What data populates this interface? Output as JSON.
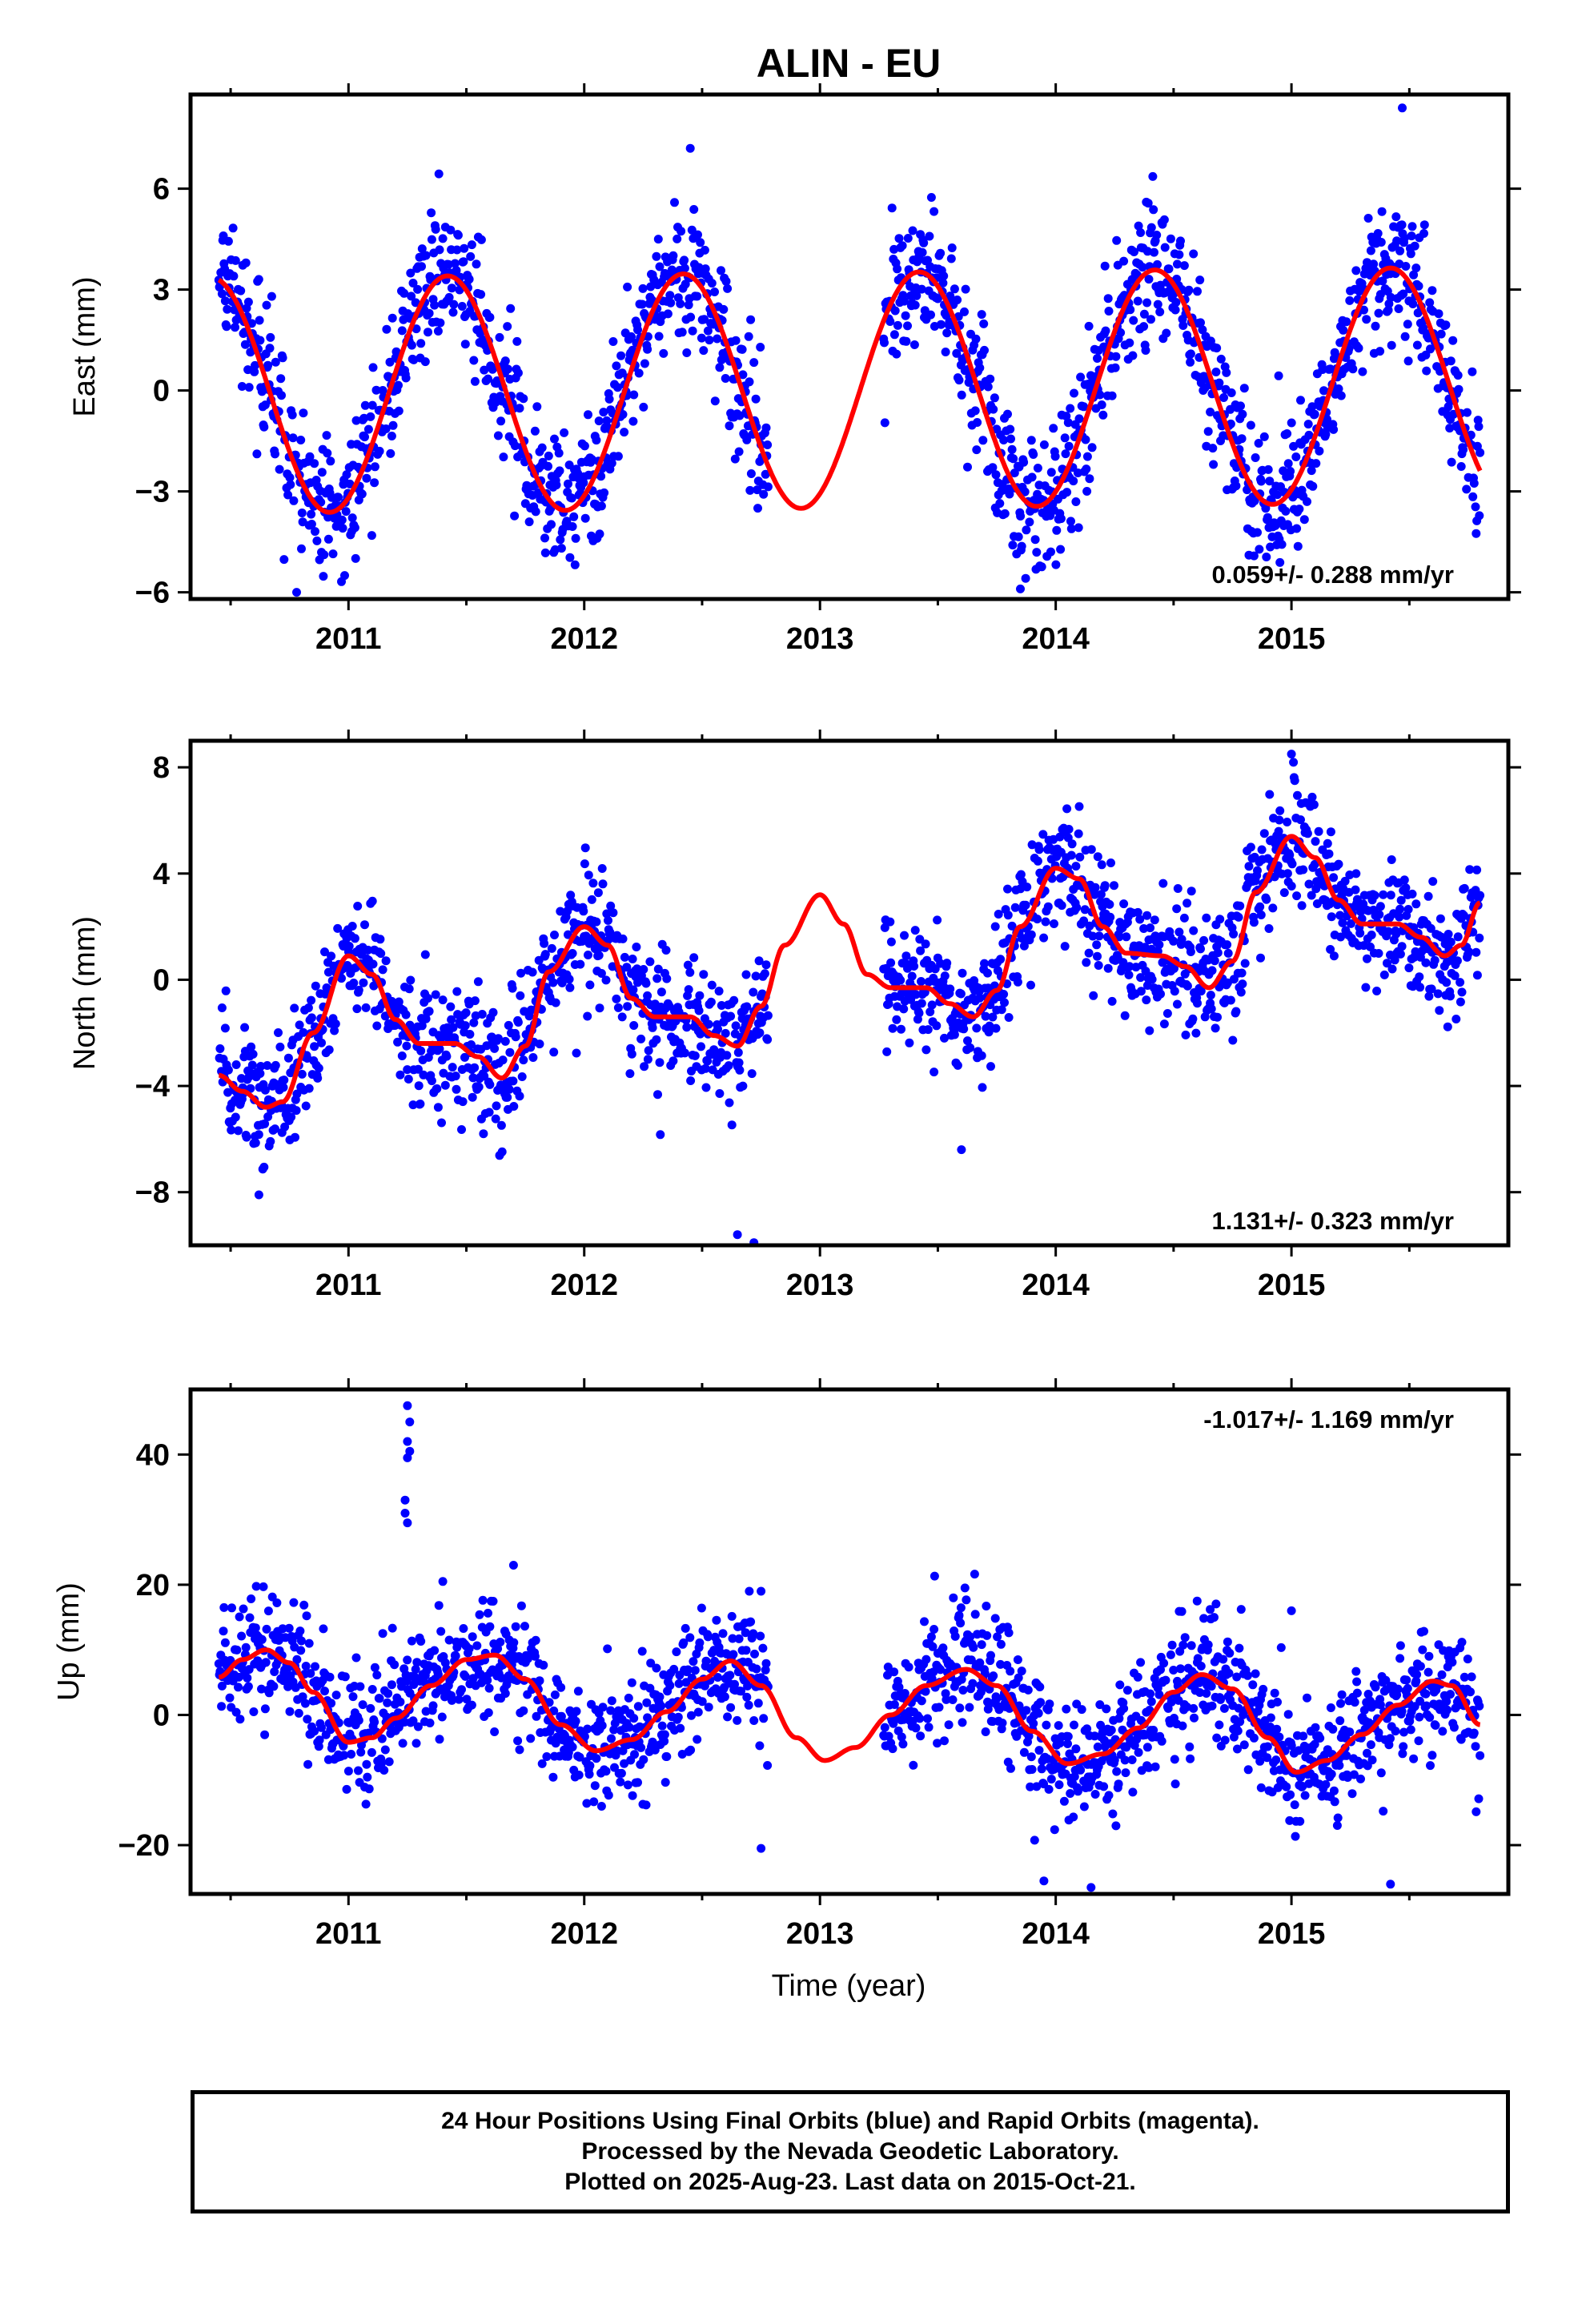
{
  "title": "ALIN - EU",
  "xlabel": "Time (year)",
  "colors": {
    "observed": "#0000ff",
    "model": "#ff0000",
    "frame": "#000000"
  },
  "chart_data": [
    {
      "type": "scatter",
      "panel": "east",
      "ylabel": "East (mm)",
      "xlim": [
        2010.33,
        2015.92
      ],
      "ylim": [
        -6.2,
        8.8
      ],
      "yticks": [
        6,
        3,
        0,
        -3,
        -6
      ],
      "xticks": [
        2011,
        2012,
        2013,
        2014,
        2015
      ],
      "rate_text": "0.059+/- 0.288 mm/yr",
      "rate_position": "bottom-right",
      "model_curve": {
        "form": "offset + trend + annual sinusoid",
        "offset": 0.0,
        "trend": 0.059,
        "amplitude": 3.5,
        "peak_phase_year_fraction": 0.42
      },
      "data_segments": [
        {
          "start": 2010.45,
          "end": 2012.78
        },
        {
          "start": 2013.27,
          "end": 2015.8
        }
      ],
      "noise_sd": 1.05,
      "outliers": [
        {
          "x": 2015.47,
          "y": 8.4
        },
        {
          "x": 2010.78,
          "y": -6.0
        },
        {
          "x": 2013.85,
          "y": -5.9
        },
        {
          "x": 2012.45,
          "y": 7.2
        }
      ]
    },
    {
      "type": "scatter",
      "panel": "north",
      "ylabel": "North (mm)",
      "xlim": [
        2010.33,
        2015.92
      ],
      "ylim": [
        -10.0,
        9.0
      ],
      "yticks": [
        8,
        4,
        0,
        -4,
        -8
      ],
      "xticks": [
        2011,
        2012,
        2013,
        2014,
        2015
      ],
      "rate_text": "1.131+/- 0.323 mm/yr",
      "rate_position": "bottom-right",
      "model_points": {
        "x": [
          2010.45,
          2010.55,
          2010.65,
          2010.72,
          2010.85,
          2011.0,
          2011.1,
          2011.2,
          2011.3,
          2011.45,
          2011.55,
          2011.65,
          2011.75,
          2011.85,
          2012.0,
          2012.1,
          2012.2,
          2012.3,
          2012.45,
          2012.55,
          2012.65,
          2012.75,
          2012.85,
          2013.0,
          2013.1,
          2013.2,
          2013.3,
          2013.45,
          2013.55,
          2013.65,
          2013.75,
          2013.85,
          2014.0,
          2014.1,
          2014.2,
          2014.3,
          2014.45,
          2014.55,
          2014.65,
          2014.75,
          2014.85,
          2015.0,
          2015.1,
          2015.2,
          2015.3,
          2015.45,
          2015.55,
          2015.65,
          2015.72,
          2015.8
        ],
        "y": [
          -3.6,
          -4.2,
          -4.8,
          -4.6,
          -2.0,
          0.9,
          0.2,
          -1.5,
          -2.4,
          -2.4,
          -2.9,
          -3.7,
          -2.5,
          0.3,
          2.0,
          1.3,
          -0.7,
          -1.4,
          -1.4,
          -2.1,
          -2.5,
          -1.0,
          1.3,
          3.2,
          2.1,
          0.2,
          -0.3,
          -0.3,
          -0.9,
          -1.4,
          -0.4,
          2.0,
          4.2,
          3.8,
          2.0,
          1.0,
          0.9,
          0.5,
          -0.3,
          0.7,
          3.3,
          5.4,
          4.6,
          3.0,
          2.1,
          2.1,
          1.6,
          0.9,
          1.3,
          2.9
        ]
      },
      "data_segments": [
        {
          "start": 2010.45,
          "end": 2012.78
        },
        {
          "start": 2013.27,
          "end": 2015.8
        }
      ],
      "noise_sd": 1.15,
      "outliers": [
        {
          "x": 2012.65,
          "y": -9.6
        },
        {
          "x": 2012.72,
          "y": -9.9
        },
        {
          "x": 2010.62,
          "y": -8.1
        },
        {
          "x": 2015.0,
          "y": 8.5
        },
        {
          "x": 2013.6,
          "y": -6.4
        }
      ]
    },
    {
      "type": "scatter",
      "panel": "up",
      "ylabel": "Up (mm)",
      "xlim": [
        2010.33,
        2015.92
      ],
      "ylim": [
        -27.5,
        50.0
      ],
      "yticks": [
        40,
        20,
        0,
        -20
      ],
      "xticks": [
        2011,
        2012,
        2013,
        2014,
        2015
      ],
      "rate_text": "-1.017+/- 1.169 mm/yr",
      "rate_position": "top-right",
      "model_points": {
        "x": [
          2010.45,
          2010.55,
          2010.65,
          2010.75,
          2010.85,
          2011.0,
          2011.1,
          2011.2,
          2011.35,
          2011.5,
          2011.62,
          2011.75,
          2011.9,
          2012.05,
          2012.2,
          2012.35,
          2012.5,
          2012.62,
          2012.75,
          2012.9,
          2013.02,
          2013.15,
          2013.3,
          2013.45,
          2013.62,
          2013.75,
          2013.9,
          2014.05,
          2014.2,
          2014.35,
          2014.5,
          2014.62,
          2014.75,
          2014.9,
          2015.02,
          2015.15,
          2015.3,
          2015.45,
          2015.6,
          2015.68,
          2015.8
        ],
        "y": [
          5.8,
          8.5,
          10.0,
          8.0,
          3.5,
          -4.2,
          -3.5,
          -0.5,
          4.5,
          8.5,
          9.2,
          5.5,
          -1.5,
          -5.5,
          -3.8,
          0.5,
          5.5,
          8.3,
          4.5,
          -3.5,
          -7.0,
          -5.0,
          0.0,
          4.5,
          7.0,
          4.5,
          -2.5,
          -7.5,
          -6.0,
          -2.0,
          3.5,
          6.2,
          4.0,
          -3.5,
          -8.8,
          -7.0,
          -3.0,
          1.5,
          5.2,
          4.5,
          -1.5
        ]
      },
      "data_segments": [
        {
          "start": 2010.45,
          "end": 2012.78
        },
        {
          "start": 2013.27,
          "end": 2015.8
        }
      ],
      "noise_sd": 4.8,
      "outliers": [
        {
          "x": 2011.25,
          "y": 47.5
        },
        {
          "x": 2011.26,
          "y": 45.0
        },
        {
          "x": 2011.25,
          "y": 42.0
        },
        {
          "x": 2011.26,
          "y": 40.5
        },
        {
          "x": 2011.25,
          "y": 39.5
        },
        {
          "x": 2011.24,
          "y": 31.0
        },
        {
          "x": 2011.25,
          "y": 29.5
        },
        {
          "x": 2011.24,
          "y": 33.0
        },
        {
          "x": 2013.95,
          "y": -25.5
        },
        {
          "x": 2014.15,
          "y": -26.5
        },
        {
          "x": 2015.42,
          "y": -26.0
        },
        {
          "x": 2012.75,
          "y": -20.5
        },
        {
          "x": 2011.4,
          "y": 20.5
        },
        {
          "x": 2011.7,
          "y": 23.0
        },
        {
          "x": 2012.75,
          "y": 19.0
        },
        {
          "x": 2012.7,
          "y": 19.0
        },
        {
          "x": 2014.6,
          "y": 17.5
        },
        {
          "x": 2015.0,
          "y": 16.0
        }
      ]
    }
  ],
  "footer": {
    "line1": "24 Hour Positions Using Final Orbits (blue) and Rapid Orbits (magenta).",
    "line2": "Processed by the Nevada Geodetic Laboratory.",
    "line3": "Plotted on 2025-Aug-23. Last data on 2015-Oct-21."
  }
}
